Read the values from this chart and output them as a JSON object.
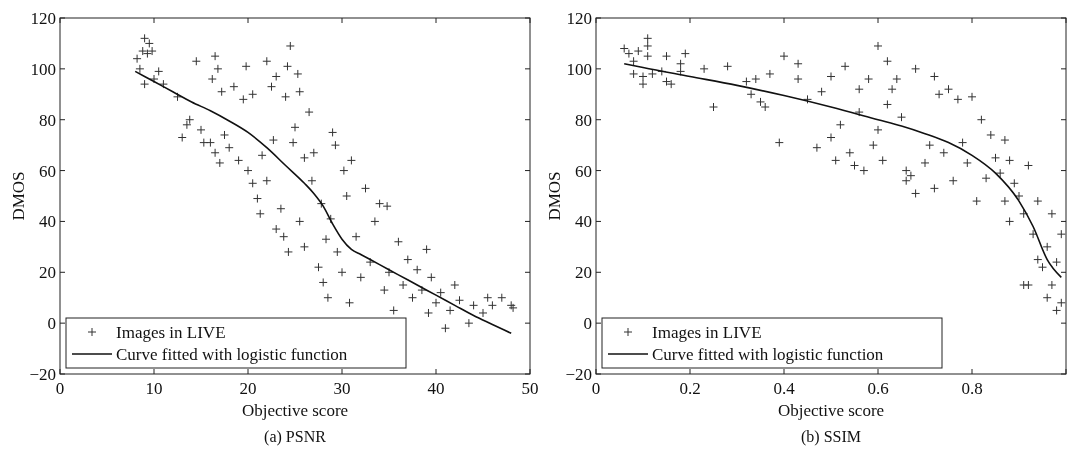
{
  "chart_data": [
    {
      "type": "scatter",
      "title": "(a) PSNR",
      "xlabel": "Objective score",
      "ylabel": "DMOS",
      "xlim": [
        0,
        50
      ],
      "xticks": [
        0,
        10,
        20,
        30,
        40,
        50
      ],
      "ylim": [
        -20,
        120
      ],
      "yticks": [
        -20,
        0,
        20,
        40,
        60,
        80,
        100,
        120
      ],
      "legend": "bottom left",
      "grid": false,
      "series": [
        {
          "name": "Images in LIVE",
          "type": "scatter",
          "marker": "cross",
          "color": "#333333",
          "x": [
            8.2,
            8.8,
            9,
            9.3,
            9.5,
            8.5,
            9,
            10,
            10.5,
            11,
            12.5,
            9.8,
            13,
            13.5,
            13.8,
            14.5,
            15,
            15.3,
            16,
            16.2,
            16.5,
            16.8,
            16.5,
            17,
            17.2,
            17.5,
            18,
            18.5,
            19,
            19.5,
            19.8,
            20,
            20.5,
            20.5,
            21,
            21.3,
            21.5,
            22,
            22,
            22.5,
            22.7,
            23,
            23,
            23.5,
            23.8,
            24,
            24.2,
            24.5,
            24.3,
            24.8,
            25,
            25.3,
            25.5,
            25.5,
            26,
            26,
            26.5,
            26.8,
            27,
            27.5,
            27.8,
            28,
            28.3,
            28.5,
            28.8,
            29,
            29.3,
            29.5,
            30,
            30.2,
            30.5,
            30.8,
            31,
            31.5,
            32,
            32.5,
            33,
            33.5,
            34,
            34.5,
            34.8,
            35,
            35.5,
            36,
            36.5,
            37,
            37.5,
            38,
            38.5,
            39,
            39.2,
            39.5,
            40,
            40.5,
            41,
            41.5,
            42,
            42.5,
            43.5,
            44,
            45,
            45.5,
            46,
            47,
            48,
            48.2
          ],
          "values": [
            104,
            107,
            112,
            106,
            110,
            100,
            94,
            96,
            99,
            94,
            89,
            107,
            73,
            78,
            80,
            103,
            76,
            71,
            71,
            96,
            105,
            100,
            67,
            63,
            91,
            74,
            69,
            93,
            64,
            88,
            101,
            60,
            90,
            55,
            49,
            43,
            66,
            103,
            56,
            93,
            72,
            97,
            37,
            45,
            34,
            89,
            101,
            109,
            28,
            71,
            77,
            98,
            91,
            40,
            65,
            30,
            83,
            56,
            67,
            22,
            47,
            16,
            33,
            10,
            41,
            75,
            70,
            28,
            20,
            60,
            50,
            8,
            64,
            34,
            18,
            53,
            24,
            40,
            47,
            13,
            46,
            20,
            5,
            32,
            15,
            25,
            10,
            21,
            13,
            29,
            4,
            18,
            8,
            12,
            -2,
            5,
            15,
            9,
            0,
            7,
            4,
            10,
            7,
            10,
            7,
            6
          ]
        },
        {
          "name": "Curve fitted with logistic function",
          "type": "line",
          "line_style": "solid",
          "color": "#111111",
          "x": [
            8,
            10,
            12,
            14,
            16,
            18,
            20,
            22,
            24,
            26,
            27,
            28,
            29,
            30,
            31,
            32,
            34,
            36,
            38,
            40,
            42,
            44,
            46,
            48
          ],
          "values": [
            99,
            95,
            91,
            87,
            83.5,
            79.5,
            75,
            69,
            62,
            55,
            51,
            46,
            39,
            33,
            29,
            27,
            23,
            19,
            15,
            11,
            7,
            3,
            -0.5,
            -4
          ]
        }
      ]
    },
    {
      "type": "scatter",
      "title": "(b) SSIM",
      "xlabel": "Objective score",
      "ylabel": "DMOS",
      "xlim": [
        0,
        1
      ],
      "xticks": [
        0,
        0.2,
        0.4,
        0.6,
        0.8,
        {
          "value": 1,
          "label": null
        }
      ],
      "ylim": [
        -20,
        120
      ],
      "yticks": [
        -20,
        0,
        20,
        40,
        60,
        80,
        100,
        120
      ],
      "legend": "bottom left",
      "grid": false,
      "series": [
        {
          "name": "Images in LIVE",
          "type": "scatter",
          "marker": "cross",
          "color": "#333333",
          "x": [
            0.06,
            0.07,
            0.08,
            0.09,
            0.08,
            0.1,
            0.11,
            0.11,
            0.11,
            0.1,
            0.12,
            0.14,
            0.15,
            0.15,
            0.16,
            0.18,
            0.18,
            0.19,
            0.23,
            0.25,
            0.28,
            0.32,
            0.33,
            0.34,
            0.35,
            0.36,
            0.37,
            0.39,
            0.4,
            0.43,
            0.43,
            0.45,
            0.47,
            0.48,
            0.5,
            0.5,
            0.51,
            0.52,
            0.53,
            0.54,
            0.55,
            0.56,
            0.56,
            0.57,
            0.58,
            0.59,
            0.6,
            0.6,
            0.61,
            0.62,
            0.62,
            0.63,
            0.64,
            0.65,
            0.66,
            0.66,
            0.67,
            0.68,
            0.68,
            0.7,
            0.71,
            0.72,
            0.72,
            0.73,
            0.74,
            0.75,
            0.76,
            0.77,
            0.78,
            0.79,
            0.8,
            0.81,
            0.82,
            0.83,
            0.84,
            0.85,
            0.86,
            0.87,
            0.87,
            0.88,
            0.88,
            0.89,
            0.9,
            0.91,
            0.92,
            0.93,
            0.94,
            0.95,
            0.96,
            0.97,
            0.97,
            0.98,
            0.99,
            0.99,
            0.91,
            0.92,
            0.96,
            0.98,
            0.94
          ],
          "values": [
            108,
            106,
            103,
            107,
            98,
            97,
            112,
            109,
            105,
            94,
            98,
            99,
            105,
            95,
            94,
            102,
            99,
            106,
            100,
            85,
            101,
            95,
            90,
            96,
            87,
            85,
            98,
            71,
            105,
            102,
            96,
            88,
            69,
            91,
            97,
            73,
            64,
            78,
            101,
            67,
            62,
            92,
            83,
            60,
            96,
            70,
            109,
            76,
            64,
            103,
            86,
            92,
            96,
            81,
            60,
            56,
            58,
            100,
            51,
            63,
            70,
            97,
            53,
            90,
            67,
            92,
            56,
            88,
            71,
            63,
            89,
            48,
            80,
            57,
            74,
            65,
            59,
            72,
            48,
            40,
            64,
            55,
            50,
            43,
            62,
            35,
            48,
            22,
            30,
            15,
            43,
            24,
            8,
            35,
            15,
            15,
            10,
            5,
            25
          ]
        },
        {
          "name": "Curve fitted with logistic function",
          "type": "line",
          "line_style": "solid",
          "color": "#111111",
          "x": [
            0.06,
            0.1,
            0.2,
            0.3,
            0.4,
            0.5,
            0.6,
            0.65,
            0.7,
            0.75,
            0.8,
            0.85,
            0.9,
            0.93,
            0.96,
            0.99
          ],
          "values": [
            102,
            100.5,
            97,
            93.5,
            89.5,
            85,
            80,
            77.5,
            74.5,
            71,
            66,
            59,
            48,
            38,
            25,
            18
          ]
        }
      ]
    }
  ]
}
